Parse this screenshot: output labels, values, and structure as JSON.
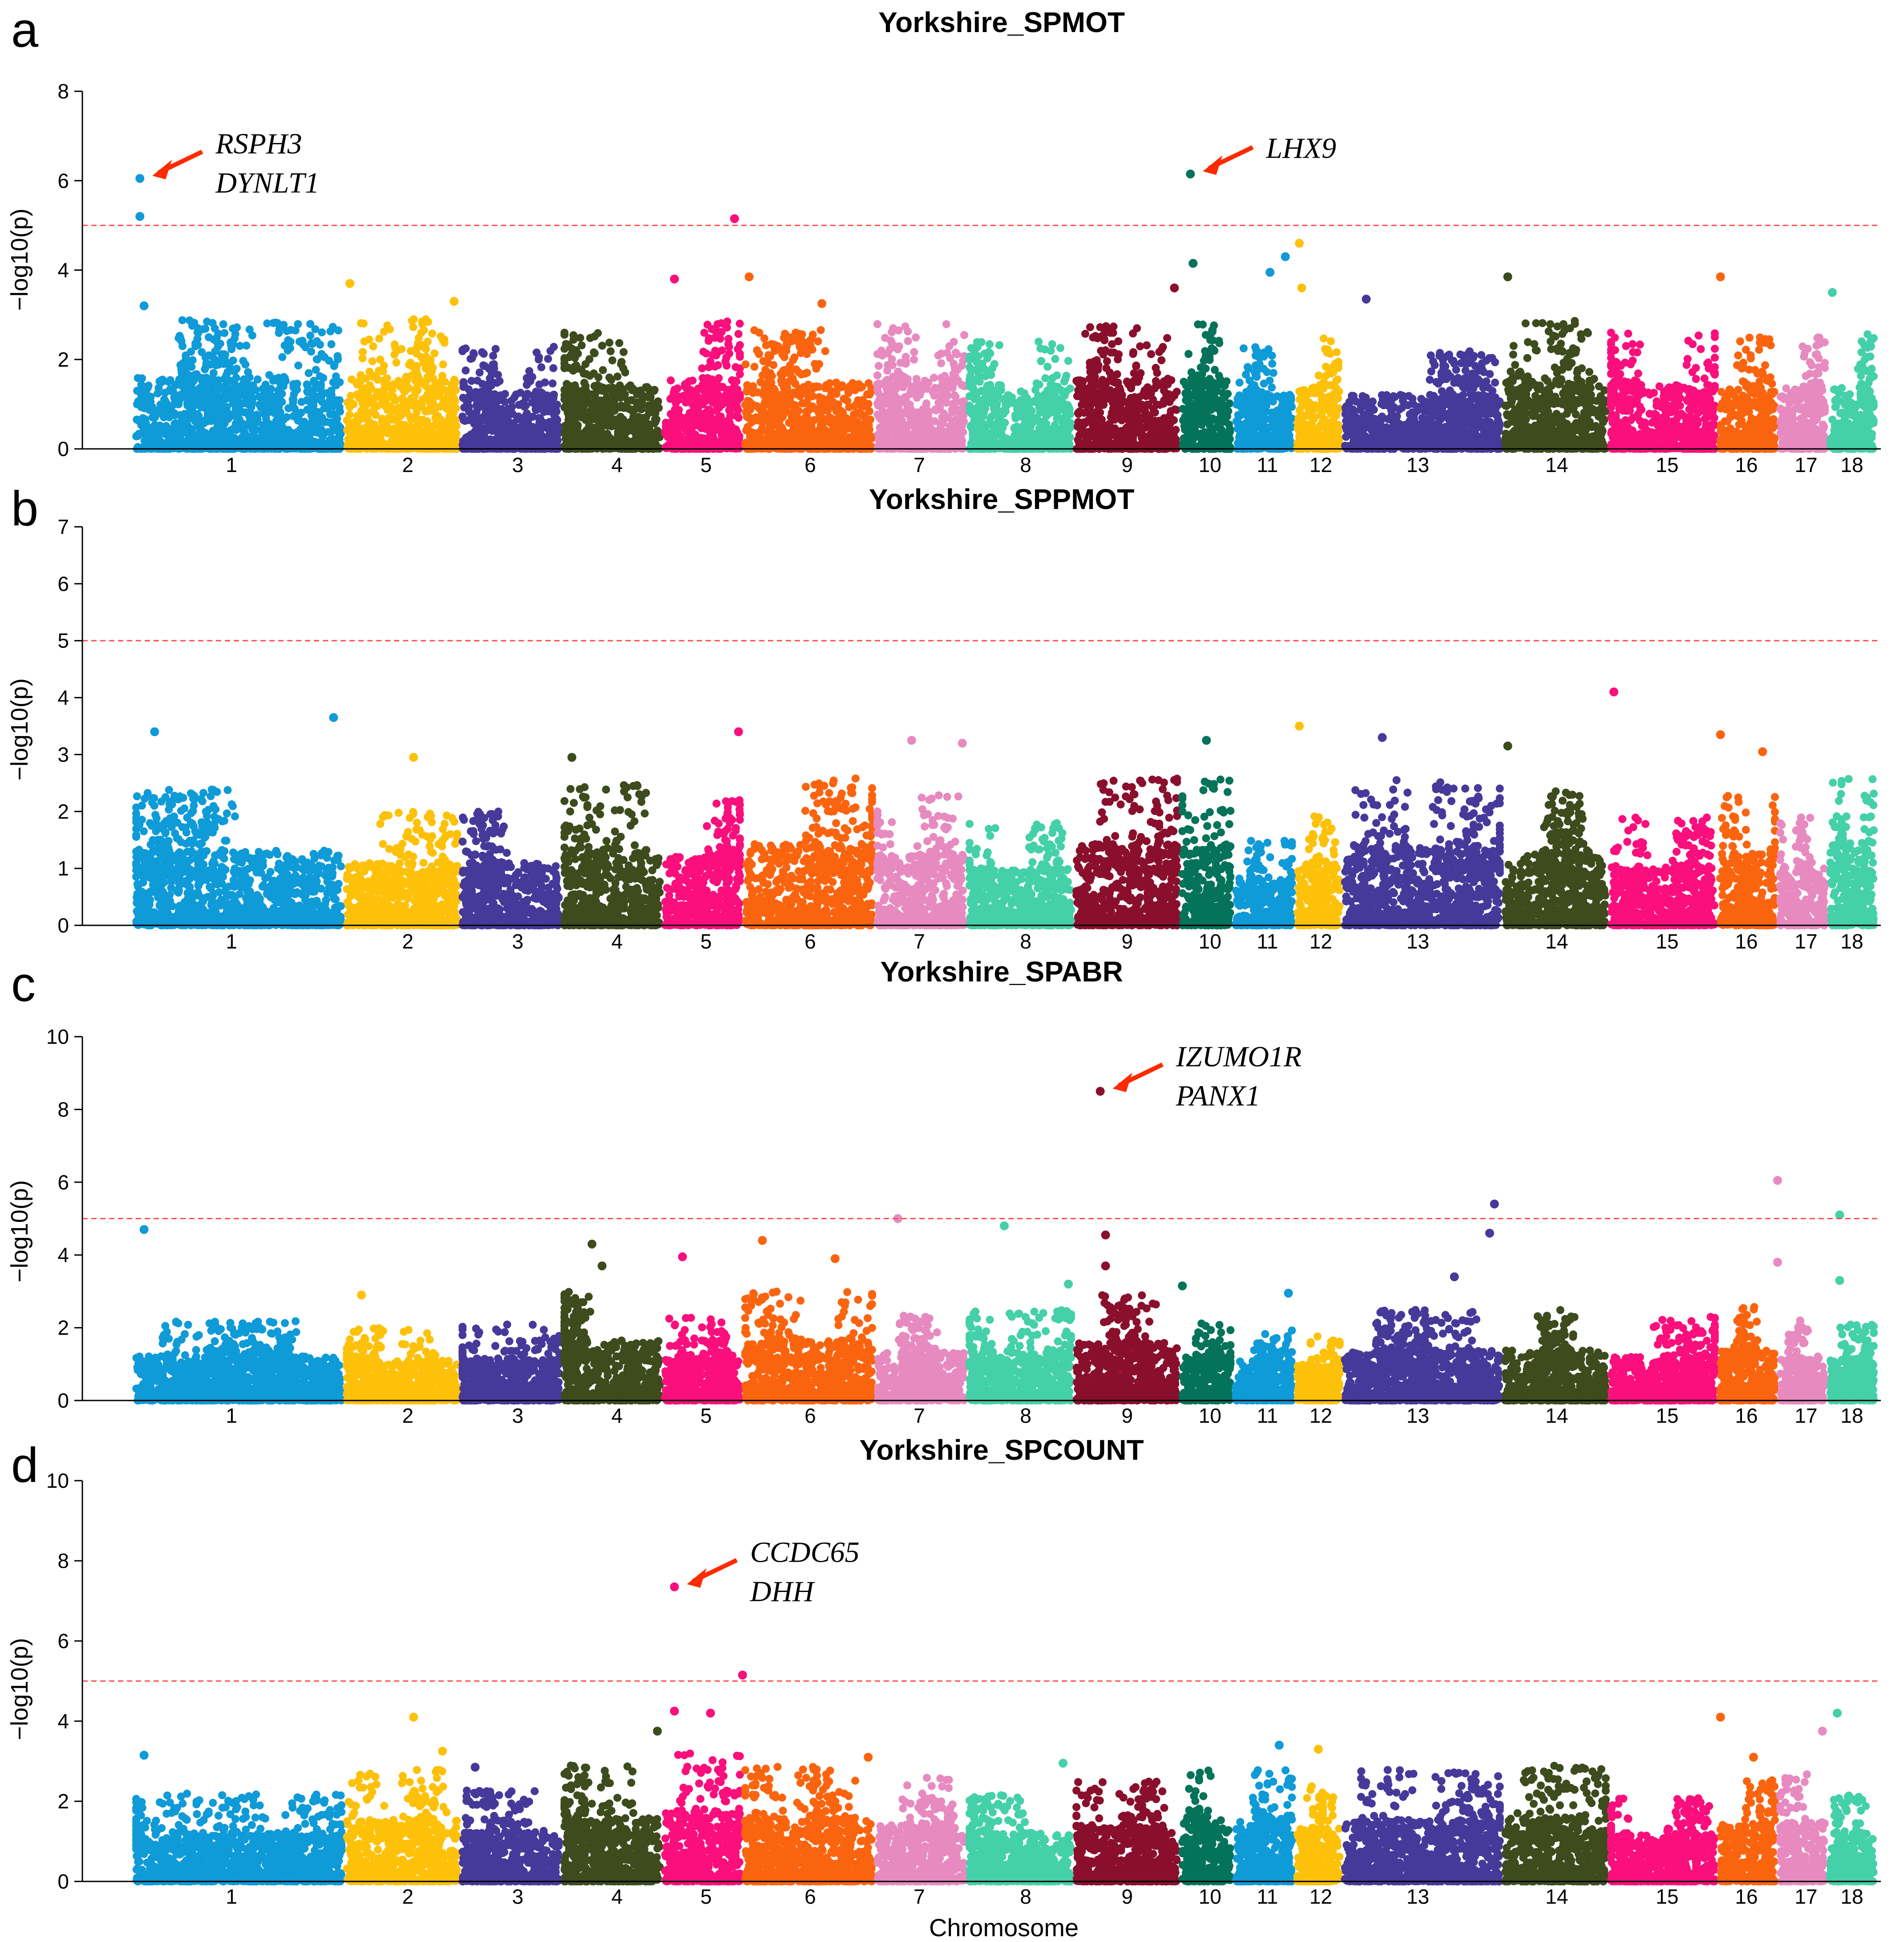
{
  "chart_data": {
    "type": "scatter",
    "subtype": "manhattan",
    "x_axis_title": "Chromosome",
    "y_axis_title": "−log10(p)",
    "chromosomes": [
      "1",
      "2",
      "3",
      "4",
      "5",
      "6",
      "7",
      "8",
      "9",
      "10",
      "11",
      "12",
      "13",
      "14",
      "15",
      "16",
      "17",
      "18"
    ],
    "chromosome_colors": [
      "#0f9ad8",
      "#fec10a",
      "#46399a",
      "#3d4b1d",
      "#fa0f7c",
      "#fb640f",
      "#e78ac0",
      "#44d0a8",
      "#8a0f2d",
      "#04735a",
      "#0f9ad8",
      "#fec10a",
      "#46399a",
      "#3d4b1d",
      "#fa0f7c",
      "#fb640f",
      "#e78ac0",
      "#44d0a8"
    ],
    "panels": [
      {
        "letter": "a",
        "title": "Yorkshire_SPMOT",
        "ylim": [
          0,
          8
        ],
        "yticks": [
          0,
          2,
          4,
          6,
          8
        ],
        "threshold": 5,
        "background_max": [
          2.9,
          2.9,
          2.3,
          2.6,
          2.9,
          2.7,
          2.9,
          2.4,
          2.8,
          2.8,
          2.3,
          2.5,
          2.2,
          2.9,
          2.6,
          2.5,
          2.5,
          2.6
        ],
        "peaks": [
          {
            "chr": "1",
            "pos": 0.03,
            "value": 6.05
          },
          {
            "chr": "1",
            "pos": 0.03,
            "value": 5.2
          },
          {
            "chr": "1",
            "pos": 0.05,
            "value": 3.2
          },
          {
            "chr": "2",
            "pos": 0.05,
            "value": 3.7
          },
          {
            "chr": "2",
            "pos": 0.95,
            "value": 3.3
          },
          {
            "chr": "5",
            "pos": 0.15,
            "value": 3.8
          },
          {
            "chr": "5",
            "pos": 0.9,
            "value": 5.15
          },
          {
            "chr": "6",
            "pos": 0.05,
            "value": 3.85
          },
          {
            "chr": "6",
            "pos": 0.6,
            "value": 3.25
          },
          {
            "chr": "9",
            "pos": 0.95,
            "value": 3.6
          },
          {
            "chr": "10",
            "pos": 0.2,
            "value": 6.15
          },
          {
            "chr": "10",
            "pos": 0.25,
            "value": 4.15
          },
          {
            "chr": "11",
            "pos": 0.85,
            "value": 4.3
          },
          {
            "chr": "11",
            "pos": 0.6,
            "value": 3.95
          },
          {
            "chr": "12",
            "pos": 0.1,
            "value": 4.6
          },
          {
            "chr": "12",
            "pos": 0.15,
            "value": 3.6
          },
          {
            "chr": "13",
            "pos": 0.15,
            "value": 3.35
          },
          {
            "chr": "14",
            "pos": 0.05,
            "value": 3.85
          },
          {
            "chr": "16",
            "pos": 0.05,
            "value": 3.85
          },
          {
            "chr": "18",
            "pos": 0.1,
            "value": 3.5
          }
        ],
        "annotations": [
          {
            "genes": [
              "RSPH3",
              "DYNLT1"
            ],
            "chr": "1",
            "pos": 0.03,
            "value": 6.05
          },
          {
            "genes": [
              "LHX9"
            ],
            "chr": "10",
            "pos": 0.2,
            "value": 6.15
          }
        ]
      },
      {
        "letter": "b",
        "title": "Yorkshire_SPPMOT",
        "ylim": [
          0,
          7
        ],
        "yticks": [
          0,
          1,
          2,
          3,
          4,
          5,
          6,
          7
        ],
        "threshold": 5,
        "background_max": [
          2.4,
          2.0,
          2.0,
          2.5,
          2.2,
          2.6,
          2.3,
          1.8,
          2.6,
          2.6,
          1.5,
          2.0,
          2.6,
          2.4,
          1.9,
          2.3,
          1.9,
          2.7
        ],
        "peaks": [
          {
            "chr": "1",
            "pos": 0.1,
            "value": 3.4
          },
          {
            "chr": "1",
            "pos": 0.95,
            "value": 3.65
          },
          {
            "chr": "2",
            "pos": 0.6,
            "value": 2.95
          },
          {
            "chr": "4",
            "pos": 0.1,
            "value": 2.95
          },
          {
            "chr": "5",
            "pos": 0.95,
            "value": 3.4
          },
          {
            "chr": "7",
            "pos": 0.4,
            "value": 3.25
          },
          {
            "chr": "7",
            "pos": 0.95,
            "value": 3.2
          },
          {
            "chr": "10",
            "pos": 0.5,
            "value": 3.25
          },
          {
            "chr": "12",
            "pos": 0.1,
            "value": 3.5
          },
          {
            "chr": "13",
            "pos": 0.25,
            "value": 3.3
          },
          {
            "chr": "14",
            "pos": 0.05,
            "value": 3.15
          },
          {
            "chr": "15",
            "pos": 0.05,
            "value": 4.1
          },
          {
            "chr": "16",
            "pos": 0.05,
            "value": 3.35
          },
          {
            "chr": "16",
            "pos": 0.75,
            "value": 3.05
          }
        ],
        "annotations": []
      },
      {
        "letter": "c",
        "title": "Yorkshire_SPABR",
        "ylim": [
          0,
          10
        ],
        "yticks": [
          0,
          2,
          4,
          6,
          8,
          10
        ],
        "threshold": 5,
        "background_max": [
          2.2,
          2.0,
          2.1,
          3.0,
          2.3,
          3.0,
          2.4,
          2.5,
          2.9,
          2.2,
          2.0,
          1.8,
          2.5,
          2.5,
          2.3,
          2.7,
          2.2,
          2.1
        ],
        "peaks": [
          {
            "chr": "1",
            "pos": 0.05,
            "value": 4.7
          },
          {
            "chr": "2",
            "pos": 0.15,
            "value": 2.9
          },
          {
            "chr": "4",
            "pos": 0.3,
            "value": 4.3
          },
          {
            "chr": "4",
            "pos": 0.4,
            "value": 3.7
          },
          {
            "chr": "5",
            "pos": 0.25,
            "value": 3.95
          },
          {
            "chr": "6",
            "pos": 0.15,
            "value": 4.4
          },
          {
            "chr": "6",
            "pos": 0.7,
            "value": 3.9
          },
          {
            "chr": "7",
            "pos": 0.25,
            "value": 5.0
          },
          {
            "chr": "8",
            "pos": 0.35,
            "value": 4.8
          },
          {
            "chr": "8",
            "pos": 0.95,
            "value": 3.2
          },
          {
            "chr": "9",
            "pos": 0.25,
            "value": 8.5
          },
          {
            "chr": "9",
            "pos": 0.3,
            "value": 4.55
          },
          {
            "chr": "9",
            "pos": 0.3,
            "value": 3.7
          },
          {
            "chr": "10",
            "pos": 0.05,
            "value": 3.15
          },
          {
            "chr": "11",
            "pos": 0.9,
            "value": 2.95
          },
          {
            "chr": "13",
            "pos": 0.7,
            "value": 3.4
          },
          {
            "chr": "13",
            "pos": 0.95,
            "value": 5.4
          },
          {
            "chr": "13",
            "pos": 0.92,
            "value": 4.6
          },
          {
            "chr": "17",
            "pos": 0.0,
            "value": 6.05
          },
          {
            "chr": "17",
            "pos": 0.0,
            "value": 3.8
          },
          {
            "chr": "18",
            "pos": 0.25,
            "value": 5.1
          },
          {
            "chr": "18",
            "pos": 0.25,
            "value": 3.3
          }
        ],
        "annotations": [
          {
            "genes": [
              "IZUMO1R",
              "PANX1"
            ],
            "chr": "9",
            "pos": 0.25,
            "value": 8.5
          }
        ]
      },
      {
        "letter": "d",
        "title": "Yorkshire_SPCOUNT",
        "ylim": [
          0,
          10
        ],
        "yticks": [
          0,
          2,
          4,
          6,
          8,
          10
        ],
        "threshold": 5,
        "background_max": [
          2.2,
          2.8,
          2.3,
          2.9,
          3.2,
          2.9,
          2.6,
          2.2,
          2.5,
          2.8,
          2.8,
          2.4,
          2.8,
          2.9,
          2.1,
          2.6,
          2.7,
          2.2
        ],
        "peaks": [
          {
            "chr": "1",
            "pos": 0.05,
            "value": 3.15
          },
          {
            "chr": "2",
            "pos": 0.6,
            "value": 4.1
          },
          {
            "chr": "2",
            "pos": 0.85,
            "value": 3.25
          },
          {
            "chr": "3",
            "pos": 0.15,
            "value": 2.85
          },
          {
            "chr": "4",
            "pos": 0.95,
            "value": 3.75
          },
          {
            "chr": "5",
            "pos": 0.15,
            "value": 7.35
          },
          {
            "chr": "5",
            "pos": 0.15,
            "value": 4.25
          },
          {
            "chr": "5",
            "pos": 0.6,
            "value": 4.2
          },
          {
            "chr": "5",
            "pos": 1.0,
            "value": 5.15
          },
          {
            "chr": "6",
            "pos": 0.95,
            "value": 3.1
          },
          {
            "chr": "8",
            "pos": 0.9,
            "value": 2.95
          },
          {
            "chr": "11",
            "pos": 0.75,
            "value": 3.4
          },
          {
            "chr": "12",
            "pos": 0.5,
            "value": 3.3
          },
          {
            "chr": "16",
            "pos": 0.05,
            "value": 4.1
          },
          {
            "chr": "16",
            "pos": 0.6,
            "value": 3.1
          },
          {
            "chr": "17",
            "pos": 0.9,
            "value": 3.75
          },
          {
            "chr": "18",
            "pos": 0.2,
            "value": 4.2
          }
        ],
        "annotations": [
          {
            "genes": [
              "CCDC65",
              "DHH"
            ],
            "chr": "5",
            "pos": 0.15,
            "value": 7.35
          }
        ]
      }
    ]
  }
}
